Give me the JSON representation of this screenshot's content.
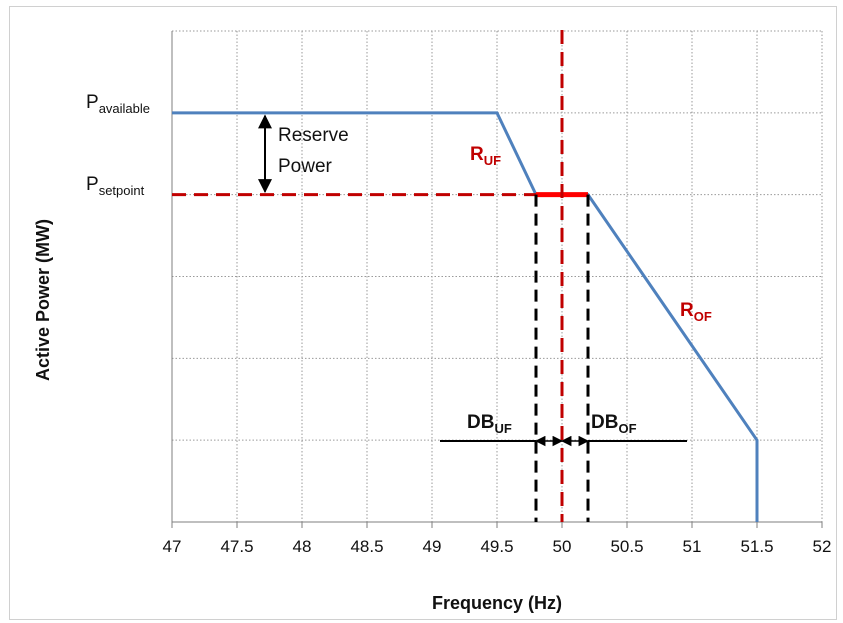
{
  "chart_data": {
    "type": "line",
    "title": "",
    "xlabel": "Frequency  (Hz)",
    "ylabel": "Active Power  (MW)",
    "xlim": [
      47,
      52
    ],
    "xticks": [
      "47",
      "47.5",
      "48",
      "48.5",
      "49",
      "49.5",
      "50",
      "50.5",
      "51",
      "51.5",
      "52"
    ],
    "grid": true,
    "y_levels": {
      "top": 6,
      "available": 5,
      "setpoint": 4,
      "bottom": 0
    },
    "series": [
      {
        "color": "#4f81bd",
        "style": "solid",
        "x": [
          47,
          49.5,
          49.8,
          50.2,
          51.5,
          51.5
        ],
        "y": [
          5,
          5,
          4,
          4,
          1,
          0
        ]
      },
      {
        "color": "#c00000",
        "style": "dashed",
        "x": [
          47,
          49.8
        ],
        "y": [
          4,
          4
        ]
      },
      {
        "color": "#ff0000",
        "style": "solid-thick",
        "x": [
          49.8,
          50.2
        ],
        "y": [
          4,
          4
        ]
      }
    ],
    "nominal_line": {
      "x": 50,
      "color": "#c00000",
      "style": "dashed"
    },
    "deadband_lines": {
      "x": [
        49.8,
        50.2
      ],
      "color": "#000000",
      "style": "dashed"
    },
    "annotations": {
      "p_available": {
        "main": "P",
        "sub": "available"
      },
      "p_setpoint": {
        "main": "P",
        "sub": "setpoint"
      },
      "reserve_line1": "Reserve",
      "reserve_line2": "Power",
      "r_uf": {
        "main": "R",
        "sub": "UF"
      },
      "r_of": {
        "main": "R",
        "sub": "OF"
      },
      "db_uf": {
        "main": "DB",
        "sub": "UF"
      },
      "db_of": {
        "main": "DB",
        "sub": "OF"
      }
    }
  }
}
